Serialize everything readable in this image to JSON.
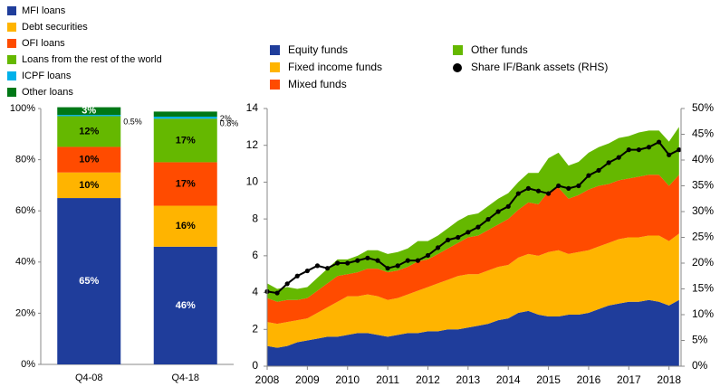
{
  "chart_data": [
    {
      "type": "bar",
      "stacked": true,
      "categories": [
        "Q4-08",
        "Q4-18"
      ],
      "ylim": [
        0,
        100
      ],
      "yticks": [
        {
          "value": 0,
          "label": "0%"
        },
        {
          "value": 20,
          "label": "20%"
        },
        {
          "value": 40,
          "label": "40%"
        },
        {
          "value": 60,
          "label": "60%"
        },
        {
          "value": 80,
          "label": "80%"
        },
        {
          "value": 100,
          "label": "100%"
        }
      ],
      "series": [
        {
          "name": "MFI loans",
          "color": "#1f3d9b",
          "values": [
            65,
            46
          ],
          "value_labels": [
            "65%",
            "46%"
          ]
        },
        {
          "name": "Debt securities",
          "color": "#ffb400",
          "values": [
            10,
            16
          ],
          "value_labels": [
            "10%",
            "16%"
          ]
        },
        {
          "name": "OFI loans",
          "color": "#ff4b00",
          "values": [
            10,
            17
          ],
          "value_labels": [
            "10%",
            "17%"
          ]
        },
        {
          "name": "Loans from the rest of the world",
          "color": "#65b800",
          "values": [
            12,
            17
          ],
          "value_labels": [
            "12%",
            "17%"
          ]
        },
        {
          "name": "ICPF loans",
          "color": "#00b1ea",
          "values": [
            0.5,
            0.8
          ],
          "value_labels": [
            "0.5%",
            "0.8%"
          ]
        },
        {
          "name": "Other loans",
          "color": "#007816",
          "values": [
            3,
            2
          ],
          "value_labels": [
            "3%",
            "2%"
          ]
        }
      ]
    },
    {
      "type": "area",
      "stacked": true,
      "x": [
        2008,
        2008.25,
        2008.5,
        2008.75,
        2009,
        2009.25,
        2009.5,
        2009.75,
        2010,
        2010.25,
        2010.5,
        2010.75,
        2011,
        2011.25,
        2011.5,
        2011.75,
        2012,
        2012.25,
        2012.5,
        2012.75,
        2013,
        2013.25,
        2013.5,
        2013.75,
        2014,
        2014.25,
        2014.5,
        2014.75,
        2015,
        2015.25,
        2015.5,
        2015.75,
        2016,
        2016.25,
        2016.5,
        2016.75,
        2017,
        2017.25,
        2017.5,
        2017.75,
        2018,
        2018.25
      ],
      "xlim": [
        2008,
        2018.3
      ],
      "xticks": [
        2008,
        2009,
        2010,
        2011,
        2012,
        2013,
        2014,
        2015,
        2016,
        2017,
        2018
      ],
      "ylim": [
        0,
        14
      ],
      "yticks": [
        0,
        2,
        4,
        6,
        8,
        10,
        12,
        14
      ],
      "y2lim": [
        0,
        50
      ],
      "y2ticks": [
        {
          "value": 0,
          "label": "0%"
        },
        {
          "value": 5,
          "label": "5%"
        },
        {
          "value": 10,
          "label": "10%"
        },
        {
          "value": 15,
          "label": "15%"
        },
        {
          "value": 20,
          "label": "20%"
        },
        {
          "value": 25,
          "label": "25%"
        },
        {
          "value": 30,
          "label": "30%"
        },
        {
          "value": 35,
          "label": "35%"
        },
        {
          "value": 40,
          "label": "40%"
        },
        {
          "value": 45,
          "label": "45%"
        },
        {
          "value": 50,
          "label": "50%"
        }
      ],
      "series": [
        {
          "name": "Equity funds",
          "color": "#1f3d9b",
          "values": [
            1.1,
            1.0,
            1.1,
            1.3,
            1.4,
            1.5,
            1.6,
            1.6,
            1.7,
            1.8,
            1.8,
            1.7,
            1.6,
            1.7,
            1.8,
            1.8,
            1.9,
            1.9,
            2.0,
            2.0,
            2.1,
            2.2,
            2.3,
            2.5,
            2.6,
            2.9,
            3.0,
            2.8,
            2.7,
            2.7,
            2.8,
            2.8,
            2.9,
            3.1,
            3.3,
            3.4,
            3.5,
            3.5,
            3.6,
            3.5,
            3.3,
            3.6
          ]
        },
        {
          "name": "Fixed income funds",
          "color": "#ffb400",
          "values": [
            1.3,
            1.3,
            1.3,
            1.2,
            1.2,
            1.4,
            1.6,
            1.9,
            2.1,
            2.0,
            2.1,
            2.1,
            2.0,
            2.0,
            2.1,
            2.3,
            2.4,
            2.6,
            2.7,
            2.9,
            2.9,
            2.8,
            2.9,
            2.9,
            2.9,
            3.0,
            3.1,
            3.2,
            3.5,
            3.6,
            3.3,
            3.4,
            3.4,
            3.4,
            3.4,
            3.5,
            3.5,
            3.5,
            3.5,
            3.6,
            3.5,
            3.6
          ]
        },
        {
          "name": "Mixed funds",
          "color": "#ff4b00",
          "values": [
            1.3,
            1.2,
            1.2,
            1.1,
            1.1,
            1.2,
            1.3,
            1.4,
            1.2,
            1.3,
            1.4,
            1.5,
            1.5,
            1.5,
            1.5,
            1.6,
            1.5,
            1.6,
            1.7,
            1.8,
            2.0,
            2.1,
            2.2,
            2.3,
            2.5,
            2.6,
            2.8,
            2.8,
            3.3,
            3.4,
            3.0,
            3.1,
            3.3,
            3.3,
            3.2,
            3.2,
            3.2,
            3.3,
            3.3,
            3.3,
            3.0,
            3.2
          ]
        },
        {
          "name": "Other funds",
          "color": "#65b800",
          "values": [
            0.8,
            0.7,
            0.7,
            0.6,
            0.6,
            0.7,
            0.8,
            0.9,
            0.8,
            0.9,
            1.0,
            1.0,
            1.0,
            1.0,
            1.0,
            1.1,
            1.0,
            1.0,
            1.1,
            1.2,
            1.2,
            1.2,
            1.3,
            1.4,
            1.4,
            1.5,
            1.6,
            1.7,
            1.8,
            1.9,
            1.8,
            1.8,
            2.0,
            2.1,
            2.2,
            2.3,
            2.3,
            2.4,
            2.4,
            2.4,
            2.4,
            2.6
          ]
        },
        {
          "name": "Share IF/Bank assets (RHS)",
          "color": "#000000",
          "axis": "y2",
          "line": true,
          "values": [
            14.5,
            14.2,
            16,
            17.5,
            18.5,
            19.5,
            19,
            20,
            20,
            20.5,
            21,
            20.5,
            19,
            19.5,
            20.5,
            20.5,
            21.5,
            23,
            24.5,
            25,
            26,
            27,
            28.5,
            30,
            31,
            33.5,
            34.5,
            34,
            33.5,
            35,
            34.5,
            35,
            37,
            38,
            39.5,
            40.5,
            42,
            42,
            42.5,
            43.5,
            41,
            42
          ]
        }
      ]
    }
  ]
}
